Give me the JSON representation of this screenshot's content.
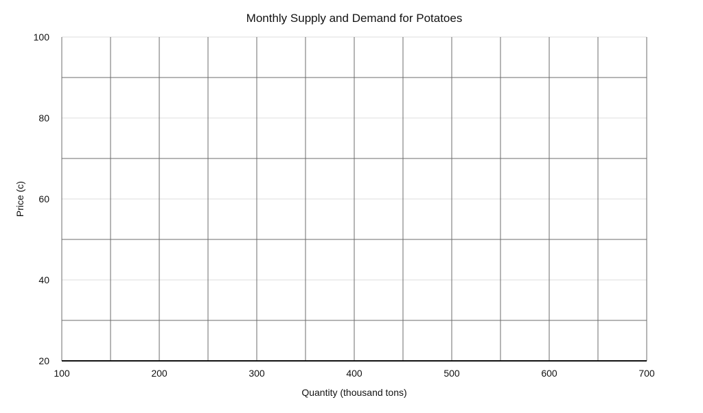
{
  "chart_data": {
    "type": "line",
    "title": "Monthly Supply and Demand for Potatoes",
    "xlabel": "Quantity (thousand tons)",
    "ylabel": "Price (c)",
    "xlim": [
      100,
      700
    ],
    "ylim": [
      20,
      100
    ],
    "x_ticks": [
      100,
      200,
      300,
      400,
      500,
      600,
      700
    ],
    "y_ticks": [
      20,
      40,
      60,
      80,
      100
    ],
    "x_major_grid_step": 50,
    "y_major_grid_step": 20,
    "y_minor_grid_step": 10,
    "grid": true,
    "series": [],
    "colors": {
      "grid_major": "#6b6b6b",
      "grid_minor": "#d0d0d0",
      "axis": "#111111"
    }
  }
}
